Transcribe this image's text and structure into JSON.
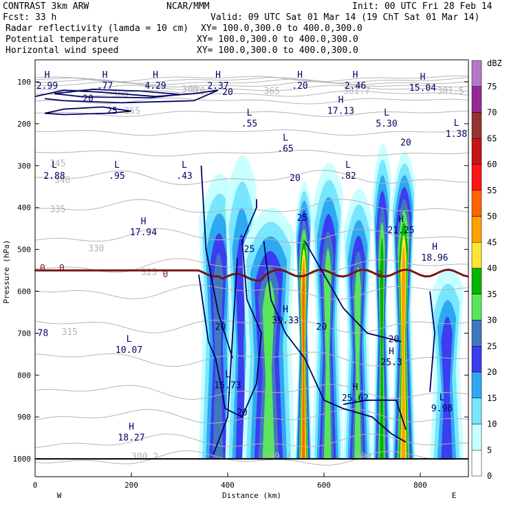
{
  "header": {
    "model": "CONTRAST  3km ARW",
    "org": "NCAR/MMM",
    "init": "Init: 00 UTC Fri 28 Feb 14",
    "fcst": "Fcst:   33 h",
    "valid": "Valid: 09 UTC Sat 01 Mar 14 (19 ChT Sat 01 Mar 14)",
    "fields": [
      {
        "name": "Radar reflectivity (lamda = 10 cm)",
        "xy": "XY= 100.0,300.0 to 400.0,300.0",
        "color": "#000000"
      },
      {
        "name": "Potential temperature",
        "xy": "XY= 100.0,300.0 to 400.0,300.0",
        "color": "#c8c8c8"
      },
      {
        "name": "Horizontal wind speed",
        "xy": "XY= 100.0,300.0 to 400.0,300.0",
        "color": "#000080"
      }
    ]
  },
  "chart_data": {
    "type": "heatmap",
    "title": "",
    "xlabel": "Distance (km)",
    "ylabel": "Pressure (hPa)",
    "xlim": [
      0,
      900
    ],
    "ylim": [
      1000,
      100
    ],
    "xticks": [
      0,
      200,
      400,
      600,
      800
    ],
    "yticks": [
      100,
      200,
      300,
      400,
      500,
      600,
      700,
      800,
      900,
      1000
    ],
    "x_end_labels": {
      "left": "W",
      "right": "E"
    },
    "colorbar": {
      "unit": "dBZ",
      "levels": [
        0,
        5,
        10,
        15,
        20,
        25,
        30,
        35,
        40,
        45,
        50,
        55,
        60,
        65,
        70,
        75
      ],
      "colors": [
        "#ffffff",
        "#c8ffff",
        "#78e6ff",
        "#2ea8f0",
        "#3c3cf0",
        "#4078c0",
        "#5ae65a",
        "#00b400",
        "#ffe632",
        "#ffa000",
        "#ff6400",
        "#ff1414",
        "#c81414",
        "#963232",
        "#962896",
        "#b478c8"
      ]
    },
    "columns": [
      {
        "x": [
          340,
          420
        ],
        "top": 240,
        "bot": 1000,
        "max": 25
      },
      {
        "x": [
          395,
          460
        ],
        "top": 190,
        "bot": 1000,
        "max": 20
      },
      {
        "x": [
          430,
          540
        ],
        "top": 330,
        "bot": 1000,
        "max": 30
      },
      {
        "x": [
          540,
          575
        ],
        "top": 260,
        "bot": 1000,
        "max": 50
      },
      {
        "x": [
          575,
          640
        ],
        "top": 210,
        "bot": 1000,
        "max": 30
      },
      {
        "x": [
          640,
          700
        ],
        "top": 280,
        "bot": 1000,
        "max": 30
      },
      {
        "x": [
          700,
          740
        ],
        "top": 160,
        "bot": 1000,
        "max": 35
      },
      {
        "x": [
          740,
          790
        ],
        "top": 180,
        "bot": 1000,
        "max": 45
      },
      {
        "x": [
          820,
          890
        ],
        "top": 490,
        "bot": 1000,
        "max": 20
      }
    ],
    "wind_speed_annotations": [
      {
        "kind": "H",
        "x": 25,
        "p": 110,
        "value": "2.99"
      },
      {
        "kind": "H",
        "x": 145,
        "p": 110,
        "value": ".77"
      },
      {
        "kind": "H",
        "x": 250,
        "p": 110,
        "value": "4.29"
      },
      {
        "kind": "H",
        "x": 380,
        "p": 110,
        "value": "2.37"
      },
      {
        "kind": "H",
        "x": 550,
        "p": 110,
        "value": ".20"
      },
      {
        "kind": "H",
        "x": 665,
        "p": 110,
        "value": "2.46"
      },
      {
        "kind": "H",
        "x": 805,
        "p": 115,
        "value": "15.04"
      },
      {
        "kind": "H",
        "x": 635,
        "p": 170,
        "value": "17.13"
      },
      {
        "kind": "L",
        "x": 445,
        "p": 200,
        "value": ".55"
      },
      {
        "kind": "L",
        "x": 730,
        "p": 200,
        "value": "5.30"
      },
      {
        "kind": "L",
        "x": 875,
        "p": 225,
        "value": "1.38"
      },
      {
        "kind": "L",
        "x": 520,
        "p": 260,
        "value": ".65"
      },
      {
        "kind": "L",
        "x": 40,
        "p": 325,
        "value": "2.88"
      },
      {
        "kind": "L",
        "x": 170,
        "p": 325,
        "value": ".95"
      },
      {
        "kind": "L",
        "x": 310,
        "p": 325,
        "value": ".43"
      },
      {
        "kind": "L",
        "x": 650,
        "p": 325,
        "value": ".82"
      },
      {
        "kind": "H",
        "x": 225,
        "p": 460,
        "value": "17.94"
      },
      {
        "kind": "H",
        "x": 760,
        "p": 455,
        "value": "21.25"
      },
      {
        "kind": "H",
        "x": 830,
        "p": 520,
        "value": "18.96"
      },
      {
        "kind": "H",
        "x": 520,
        "p": 670,
        "value": "30.33"
      },
      {
        "kind": "L",
        "x": 195,
        "p": 740,
        "value": "10.07"
      },
      {
        "kind": "L",
        "x": 400,
        "p": 825,
        "value": "15.73"
      },
      {
        "kind": "H",
        "x": 740,
        "p": 770,
        "value": "25.3"
      },
      {
        "kind": "H",
        "x": 665,
        "p": 855,
        "value": "25.62"
      },
      {
        "kind": "L",
        "x": 845,
        "p": 880,
        "value": "9.98"
      },
      {
        "kind": "H",
        "x": 200,
        "p": 950,
        "value": "18.27"
      }
    ],
    "left_edge_value": "78",
    "wind_speed_contours": [
      "20",
      "20",
      "25",
      "20",
      "25",
      "20",
      "25",
      "20",
      "20",
      "20",
      "20"
    ],
    "zero_line_label": "0",
    "theta_labels": [
      "360",
      "355",
      "345",
      "340",
      "335",
      "330",
      "325",
      "315",
      "365",
      "370",
      "365",
      "301.7",
      "301.5",
      "300.2",
      "299.2",
      "300"
    ]
  }
}
